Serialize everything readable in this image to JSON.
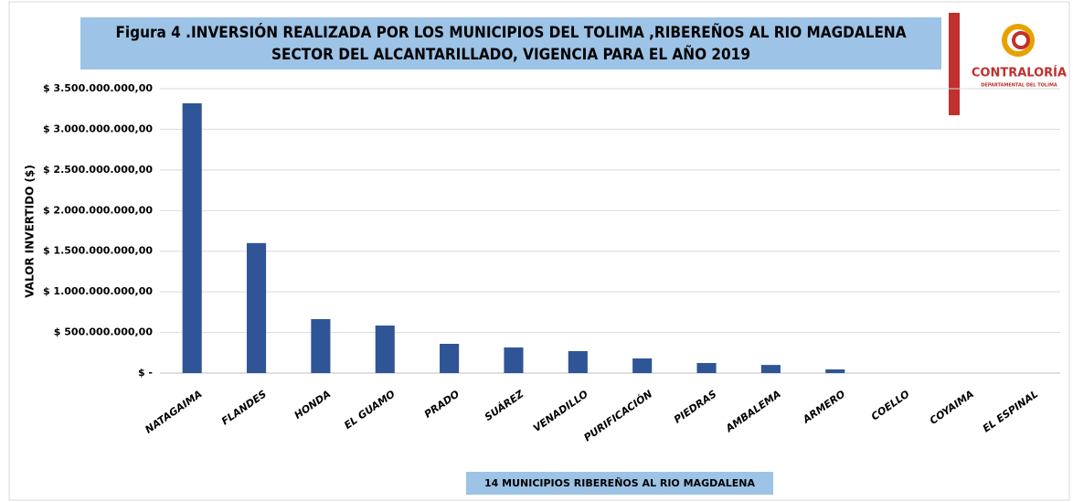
{
  "chart_data": {
    "type": "bar",
    "title_lines": [
      "Figura 4 .INVERSIÓN REALIZADA POR LOS MUNICIPIOS DEL TOLIMA ,RIBEREÑOS AL RIO MAGDALENA",
      "SECTOR DEL ALCANTARILLADO, VIGENCIA PARA EL AÑO 2019"
    ],
    "logo": {
      "name": "CONTRALORÍA",
      "subtitle": "DEPARTAMENTAL DEL TOLIMA"
    },
    "x_label": "14 MUNICIPIOS RIBEREÑOS AL RIO MAGDALENA",
    "y_label": "VALOR INVERTIDO ($)",
    "categories": [
      "NATAGAIMA",
      "FLANDES",
      "HONDA",
      "EL GUAMO",
      "PRADO",
      "SUÁREZ",
      "VENADILLO",
      "PURIFICACIÓN",
      "PIEDRAS",
      "AMBALEMA",
      "ARMERO",
      "COELLO",
      "COYAIMA",
      "EL ESPINAL"
    ],
    "values": [
      3320000000,
      1600000000,
      664000000,
      585000000,
      360000000,
      315000000,
      270000000,
      180000000,
      124000000,
      100000000,
      45000000,
      0,
      0,
      0
    ],
    "color": "#2f5597",
    "ylim": [
      0,
      3500000000
    ],
    "yticks": [
      {
        "value": 0,
        "label": "$ -"
      },
      {
        "value": 500000000,
        "label": "$ 500.000.000,00"
      },
      {
        "value": 1000000000,
        "label": "$ 1.000.000.000,00"
      },
      {
        "value": 1500000000,
        "label": "$ 1.500.000.000,00"
      },
      {
        "value": 2000000000,
        "label": "$ 2.000.000.000,00"
      },
      {
        "value": 2500000000,
        "label": "$ 2.500.000.000,00"
      },
      {
        "value": 3000000000,
        "label": "$ 3.000.000.000,00"
      },
      {
        "value": 3500000000,
        "label": "$ 3.500.000.000,00"
      }
    ],
    "grid": true
  }
}
